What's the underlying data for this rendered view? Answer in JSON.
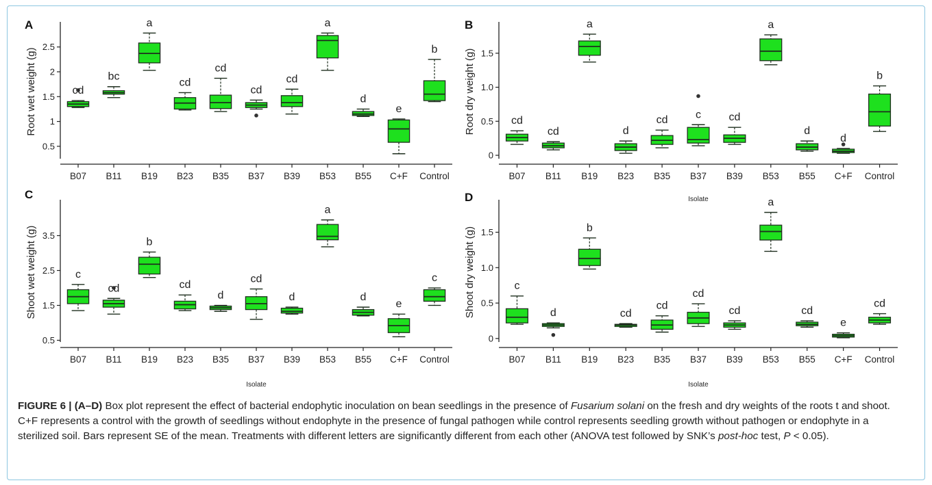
{
  "figure_label": "FIGURE 6 | (A–D)",
  "caption": {
    "part1": "Box plot represent the effect of bacterial endophytic inoculation on bean seedlings in the presence of",
    "species": "Fusarium solani",
    "part2": "on the fresh and dry weights of the roots t and shoot. C+F represents a control with the growth of seedlings without endophyte in the presence of fungal pathogen while control represents seedling growth without pathogen or endophyte in a sterilized soil. Bars represent SE of the mean. Treatments with different letters are significantly different from each other (ANOVA test followed by SNK’s",
    "posthoc": "post-hoc",
    "part3": "test,",
    "p_symbol": "P",
    "part4": "< 0.05)."
  },
  "colors": {
    "box_fill": "#1ee01e",
    "box_stroke": "#1f2f1f",
    "frame": "#8cc6e0"
  },
  "chart_data": [
    {
      "panel": "A",
      "type": "boxplot",
      "ylabel": "Root wet weight (g)",
      "xlabel": "",
      "ylim": [
        0.25,
        2.95
      ],
      "yticks": [
        0.5,
        1,
        1.5,
        2,
        2.5
      ],
      "ytick_labels": [
        "0.5",
        "1",
        "1.5",
        "2",
        "2.5"
      ],
      "categories": [
        "B07",
        "B11",
        "B19",
        "B23",
        "B35",
        "B37",
        "B39",
        "B53",
        "B55",
        "C+F",
        "Control"
      ],
      "boxes": [
        {
          "min": 1.28,
          "q1": 1.3,
          "median": 1.35,
          "q3": 1.4,
          "max": 1.42,
          "letter": "cd",
          "outliers": [
            1.63
          ]
        },
        {
          "min": 1.48,
          "q1": 1.55,
          "median": 1.58,
          "q3": 1.62,
          "max": 1.7,
          "letter": "bc",
          "outliers": []
        },
        {
          "min": 2.03,
          "q1": 2.18,
          "median": 2.37,
          "q3": 2.58,
          "max": 2.78,
          "letter": "a",
          "outliers": []
        },
        {
          "min": 1.23,
          "q1": 1.25,
          "median": 1.37,
          "q3": 1.48,
          "max": 1.58,
          "letter": "cd",
          "outliers": []
        },
        {
          "min": 1.2,
          "q1": 1.26,
          "median": 1.38,
          "q3": 1.53,
          "max": 1.87,
          "letter": "cd",
          "outliers": []
        },
        {
          "min": 1.25,
          "q1": 1.28,
          "median": 1.33,
          "q3": 1.38,
          "max": 1.43,
          "letter": "cd",
          "outliers": [
            1.12
          ]
        },
        {
          "min": 1.15,
          "q1": 1.3,
          "median": 1.38,
          "q3": 1.52,
          "max": 1.65,
          "letter": "cd",
          "outliers": []
        },
        {
          "min": 2.03,
          "q1": 2.28,
          "median": 2.63,
          "q3": 2.73,
          "max": 2.78,
          "letter": "a",
          "outliers": []
        },
        {
          "min": 1.1,
          "q1": 1.12,
          "median": 1.15,
          "q3": 1.2,
          "max": 1.25,
          "letter": "d",
          "outliers": []
        },
        {
          "min": 0.35,
          "q1": 0.58,
          "median": 0.85,
          "q3": 1.03,
          "max": 1.05,
          "letter": "e",
          "outliers": []
        },
        {
          "min": 1.4,
          "q1": 1.42,
          "median": 1.55,
          "q3": 1.82,
          "max": 2.25,
          "letter": "b",
          "outliers": []
        }
      ]
    },
    {
      "panel": "B",
      "type": "boxplot",
      "ylabel": "Root dry weight (g)",
      "xlabel": "Isolate",
      "ylim": [
        -0.05,
        1.92
      ],
      "yticks": [
        0,
        0.5,
        1.0,
        1.5
      ],
      "ytick_labels": [
        "0",
        "0.5",
        "1.0",
        "1.5"
      ],
      "categories": [
        "B07",
        "B11",
        "B19",
        "B23",
        "B35",
        "B37",
        "B39",
        "B53",
        "B55",
        "C+F",
        "Control"
      ],
      "boxes": [
        {
          "min": 0.16,
          "q1": 0.21,
          "median": 0.26,
          "q3": 0.31,
          "max": 0.36,
          "letter": "cd",
          "outliers": []
        },
        {
          "min": 0.08,
          "q1": 0.11,
          "median": 0.14,
          "q3": 0.18,
          "max": 0.2,
          "letter": "cd",
          "outliers": []
        },
        {
          "min": 1.37,
          "q1": 1.47,
          "median": 1.6,
          "q3": 1.68,
          "max": 1.78,
          "letter": "a",
          "outliers": []
        },
        {
          "min": 0.03,
          "q1": 0.07,
          "median": 0.12,
          "q3": 0.17,
          "max": 0.21,
          "letter": "d",
          "outliers": []
        },
        {
          "min": 0.11,
          "q1": 0.16,
          "median": 0.22,
          "q3": 0.29,
          "max": 0.37,
          "letter": "cd",
          "outliers": []
        },
        {
          "min": 0.14,
          "q1": 0.18,
          "median": 0.23,
          "q3": 0.41,
          "max": 0.45,
          "letter": "c",
          "outliers": [
            0.87
          ]
        },
        {
          "min": 0.16,
          "q1": 0.19,
          "median": 0.25,
          "q3": 0.3,
          "max": 0.41,
          "letter": "cd",
          "outliers": []
        },
        {
          "min": 1.33,
          "q1": 1.39,
          "median": 1.53,
          "q3": 1.71,
          "max": 1.77,
          "letter": "a",
          "outliers": []
        },
        {
          "min": 0.06,
          "q1": 0.08,
          "median": 0.12,
          "q3": 0.17,
          "max": 0.21,
          "letter": "d",
          "outliers": []
        },
        {
          "min": 0.03,
          "q1": 0.04,
          "median": 0.06,
          "q3": 0.09,
          "max": 0.1,
          "letter": "d",
          "outliers": [
            0.16
          ]
        },
        {
          "min": 0.35,
          "q1": 0.43,
          "median": 0.64,
          "q3": 0.9,
          "max": 1.02,
          "letter": "b",
          "outliers": []
        }
      ]
    },
    {
      "panel": "C",
      "type": "boxplot",
      "ylabel": "Shoot wet weight (g)",
      "xlabel": "Isolate",
      "ylim": [
        0.45,
        4.45
      ],
      "yticks": [
        0.5,
        1.5,
        2.5,
        3.5
      ],
      "ytick_labels": [
        "0.5",
        "1.5",
        "2.5",
        "3.5"
      ],
      "categories": [
        "B07",
        "B11",
        "B19",
        "B23",
        "B35",
        "B37",
        "B39",
        "B53",
        "B55",
        "C+F",
        "Control"
      ],
      "boxes": [
        {
          "min": 1.35,
          "q1": 1.55,
          "median": 1.75,
          "q3": 1.95,
          "max": 2.1,
          "letter": "c",
          "outliers": []
        },
        {
          "min": 1.25,
          "q1": 1.45,
          "median": 1.55,
          "q3": 1.65,
          "max": 1.7,
          "letter": "cd",
          "outliers": [
            2.0
          ]
        },
        {
          "min": 2.3,
          "q1": 2.4,
          "median": 2.68,
          "q3": 2.88,
          "max": 3.03,
          "letter": "b",
          "outliers": []
        },
        {
          "min": 1.35,
          "q1": 1.4,
          "median": 1.52,
          "q3": 1.62,
          "max": 1.8,
          "letter": "cd",
          "outliers": []
        },
        {
          "min": 1.33,
          "q1": 1.38,
          "median": 1.43,
          "q3": 1.48,
          "max": 1.5,
          "letter": "d",
          "outliers": []
        },
        {
          "min": 1.1,
          "q1": 1.38,
          "median": 1.55,
          "q3": 1.75,
          "max": 1.97,
          "letter": "cd",
          "outliers": []
        },
        {
          "min": 1.25,
          "q1": 1.28,
          "median": 1.33,
          "q3": 1.42,
          "max": 1.45,
          "letter": "d",
          "outliers": []
        },
        {
          "min": 3.18,
          "q1": 3.38,
          "median": 3.48,
          "q3": 3.82,
          "max": 3.95,
          "letter": "a",
          "outliers": []
        },
        {
          "min": 1.2,
          "q1": 1.22,
          "median": 1.3,
          "q3": 1.38,
          "max": 1.45,
          "letter": "d",
          "outliers": []
        },
        {
          "min": 0.6,
          "q1": 0.72,
          "median": 0.92,
          "q3": 1.12,
          "max": 1.25,
          "letter": "e",
          "outliers": []
        },
        {
          "min": 1.5,
          "q1": 1.62,
          "median": 1.75,
          "q3": 1.95,
          "max": 2.0,
          "letter": "c",
          "outliers": []
        }
      ]
    },
    {
      "panel": "D",
      "type": "boxplot",
      "ylabel": "Shoot dry weight (g)",
      "xlabel": "Isolate",
      "ylim": [
        -0.05,
        1.92
      ],
      "yticks": [
        0,
        0.5,
        1.0,
        1.5
      ],
      "ytick_labels": [
        "0",
        "0.5",
        "1.0",
        "1.5"
      ],
      "categories": [
        "B07",
        "B11",
        "B19",
        "B23",
        "B35",
        "B37",
        "B39",
        "B53",
        "B55",
        "C+F",
        "Control"
      ],
      "boxes": [
        {
          "min": 0.2,
          "q1": 0.22,
          "median": 0.3,
          "q3": 0.42,
          "max": 0.6,
          "letter": "c",
          "outliers": []
        },
        {
          "min": 0.15,
          "q1": 0.17,
          "median": 0.19,
          "q3": 0.21,
          "max": 0.22,
          "letter": "d",
          "outliers": [
            0.05
          ]
        },
        {
          "min": 0.98,
          "q1": 1.03,
          "median": 1.13,
          "q3": 1.26,
          "max": 1.42,
          "letter": "b",
          "outliers": []
        },
        {
          "min": 0.16,
          "q1": 0.17,
          "median": 0.19,
          "q3": 0.2,
          "max": 0.21,
          "letter": "cd",
          "outliers": []
        },
        {
          "min": 0.09,
          "q1": 0.13,
          "median": 0.19,
          "q3": 0.26,
          "max": 0.32,
          "letter": "cd",
          "outliers": []
        },
        {
          "min": 0.17,
          "q1": 0.21,
          "median": 0.29,
          "q3": 0.37,
          "max": 0.49,
          "letter": "cd",
          "outliers": []
        },
        {
          "min": 0.13,
          "q1": 0.16,
          "median": 0.19,
          "q3": 0.22,
          "max": 0.25,
          "letter": "cd",
          "outliers": []
        },
        {
          "min": 1.23,
          "q1": 1.39,
          "median": 1.51,
          "q3": 1.6,
          "max": 1.78,
          "letter": "a",
          "outliers": []
        },
        {
          "min": 0.16,
          "q1": 0.18,
          "median": 0.2,
          "q3": 0.23,
          "max": 0.25,
          "letter": "cd",
          "outliers": []
        },
        {
          "min": 0.01,
          "q1": 0.02,
          "median": 0.04,
          "q3": 0.06,
          "max": 0.08,
          "letter": "e",
          "outliers": []
        },
        {
          "min": 0.2,
          "q1": 0.22,
          "median": 0.26,
          "q3": 0.3,
          "max": 0.35,
          "letter": "cd",
          "outliers": []
        }
      ]
    }
  ]
}
